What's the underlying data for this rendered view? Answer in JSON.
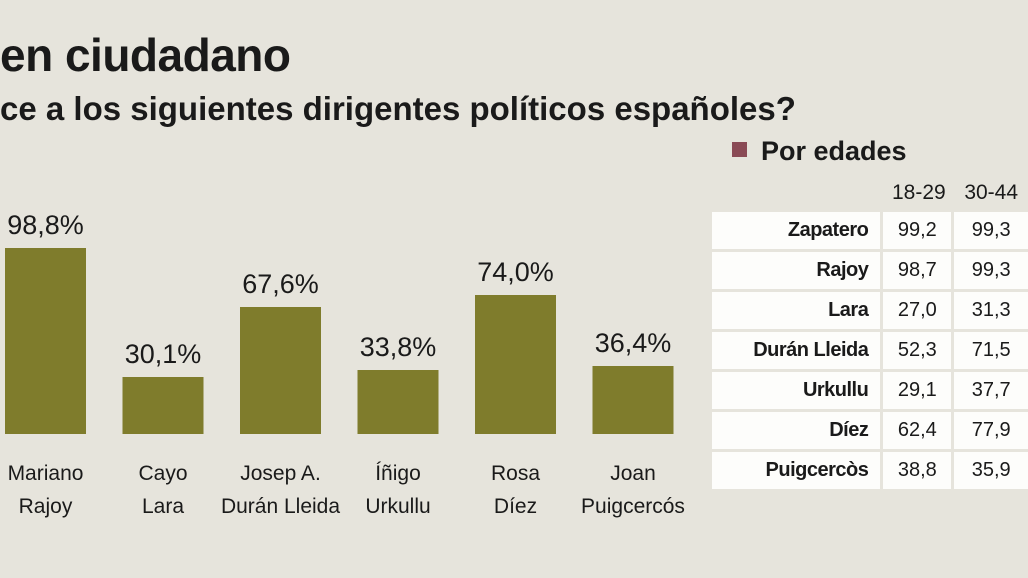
{
  "header": {
    "title": "en ciudadano",
    "subtitle": "ce a los siguientes dirigentes políticos españoles?"
  },
  "chart_data": {
    "type": "bar",
    "categories": [
      [
        "Mariano",
        "Rajoy"
      ],
      [
        "Cayo",
        "Lara"
      ],
      [
        "Josep A.",
        "Durán Lleida"
      ],
      [
        "Íñigo",
        "Urkullu"
      ],
      [
        "Rosa",
        "Díez"
      ],
      [
        "Joan",
        "Puigcercós"
      ]
    ],
    "values": [
      98.8,
      30.1,
      67.6,
      33.8,
      74.0,
      36.4
    ],
    "value_labels": [
      "98,8%",
      "30,1%",
      "67,6%",
      "33,8%",
      "74,0%",
      "36,4%"
    ],
    "ylim": [
      0,
      100
    ],
    "bar_color": "#7f7c2c"
  },
  "legend": {
    "label": "Por edades",
    "color": "#8a4a55"
  },
  "age_table": {
    "headers": [
      "18-29",
      "30-44"
    ],
    "rows": [
      {
        "name": "Zapatero",
        "values": [
          "99,2",
          "99,3"
        ]
      },
      {
        "name": "Rajoy",
        "values": [
          "98,7",
          "99,3"
        ]
      },
      {
        "name": "Lara",
        "values": [
          "27,0",
          "31,3"
        ]
      },
      {
        "name": "Durán Lleida",
        "values": [
          "52,3",
          "71,5"
        ]
      },
      {
        "name": "Urkullu",
        "values": [
          "29,1",
          "37,7"
        ]
      },
      {
        "name": "Díez",
        "values": [
          "62,4",
          "77,9"
        ]
      },
      {
        "name": "Puigcercòs",
        "values": [
          "38,8",
          "35,9"
        ]
      }
    ]
  }
}
